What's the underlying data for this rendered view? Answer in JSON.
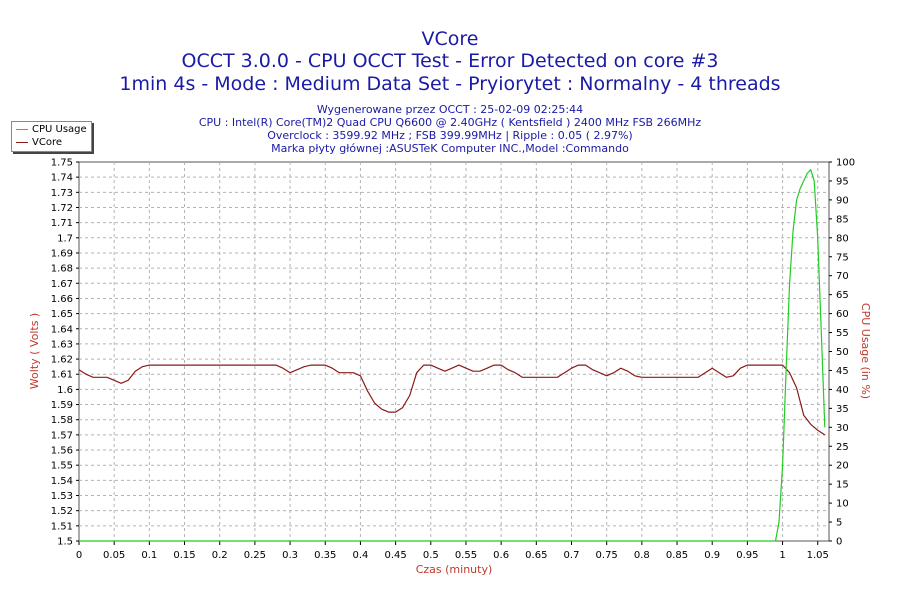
{
  "header": {
    "title": "VCore",
    "subtitle1": "OCCT 3.0.0 - CPU OCCT Test - Error Detected on core #3",
    "subtitle2": "1min 4s - Mode : Medium Data Set - Pryiorytet : Normalny - 4 threads"
  },
  "info": {
    "line1": "Wygenerowane przez OCCT : 25-02-09 02:25:44",
    "line2": "CPU : Intel(R) Core(TM)2 Quad CPU Q6600 @ 2.40GHz ( Kentsfield ) 2400 MHz FSB 266MHz",
    "line3": "Overclock : 3599.92 MHz ; FSB 399.99MHz | Ripple : 0.05 ( 2.97%)",
    "line4": "Marka płyty głównej :ASUSTeK Computer INC.,Model :Commando"
  },
  "legend": {
    "items": [
      {
        "label": "CPU Usage",
        "color": "#22cc22"
      },
      {
        "label": "VCore",
        "color": "#8b1a1a"
      }
    ]
  },
  "colors": {
    "cpu_usage": "#22cc22",
    "vcore": "#8b1a1a",
    "title": "#1a1aa6",
    "axis_label": "#c0392b",
    "grid": "#b3b3b3"
  },
  "chart_data": {
    "type": "line",
    "xlabel": "Czas (minuty)",
    "ylabel": "Wolty ( Volts )",
    "y2label": "CPU Usage (in %)",
    "xlim": [
      0,
      1.066
    ],
    "ylim": [
      1.5,
      1.75
    ],
    "y2lim": [
      0,
      100
    ],
    "grid": true,
    "legend_position": "top-left",
    "x_ticks": [
      "0",
      "0.05",
      "0.1",
      "0.15",
      "0.2",
      "0.25",
      "0.3",
      "0.35",
      "0.4",
      "0.45",
      "0.5",
      "0.55",
      "0.6",
      "0.65",
      "0.7",
      "0.75",
      "0.8",
      "0.85",
      "0.9",
      "0.95",
      "1",
      "1.05"
    ],
    "y_ticks": [
      "1.5",
      "1.51",
      "1.52",
      "1.53",
      "1.54",
      "1.55",
      "1.56",
      "1.57",
      "1.58",
      "1.59",
      "1.6",
      "1.61",
      "1.62",
      "1.63",
      "1.64",
      "1.65",
      "1.66",
      "1.67",
      "1.68",
      "1.69",
      "1.7",
      "1.71",
      "1.72",
      "1.73",
      "1.74",
      "1.75"
    ],
    "y2_ticks": [
      "0",
      "5",
      "10",
      "15",
      "20",
      "25",
      "30",
      "35",
      "40",
      "45",
      "50",
      "55",
      "60",
      "65",
      "70",
      "75",
      "80",
      "85",
      "90",
      "95",
      "100"
    ],
    "series": [
      {
        "name": "VCore",
        "axis": "left",
        "x": [
          0,
          0.01,
          0.02,
          0.04,
          0.05,
          0.06,
          0.07,
          0.08,
          0.09,
          0.1,
          0.12,
          0.15,
          0.2,
          0.25,
          0.28,
          0.29,
          0.3,
          0.31,
          0.32,
          0.33,
          0.34,
          0.35,
          0.36,
          0.37,
          0.38,
          0.39,
          0.4,
          0.41,
          0.42,
          0.43,
          0.44,
          0.45,
          0.46,
          0.47,
          0.48,
          0.49,
          0.5,
          0.51,
          0.52,
          0.53,
          0.54,
          0.55,
          0.56,
          0.57,
          0.58,
          0.59,
          0.6,
          0.61,
          0.62,
          0.63,
          0.64,
          0.65,
          0.66,
          0.67,
          0.68,
          0.69,
          0.7,
          0.71,
          0.72,
          0.73,
          0.74,
          0.75,
          0.76,
          0.77,
          0.78,
          0.79,
          0.8,
          0.85,
          0.88,
          0.89,
          0.9,
          0.91,
          0.92,
          0.93,
          0.94,
          0.95,
          0.98,
          0.99,
          1.0,
          1.01,
          1.02,
          1.03,
          1.04,
          1.05,
          1.06
        ],
        "y": [
          1.613,
          1.61,
          1.608,
          1.608,
          1.606,
          1.604,
          1.606,
          1.612,
          1.615,
          1.616,
          1.616,
          1.616,
          1.616,
          1.616,
          1.616,
          1.614,
          1.611,
          1.613,
          1.615,
          1.616,
          1.616,
          1.616,
          1.614,
          1.611,
          1.611,
          1.611,
          1.609,
          1.599,
          1.591,
          1.587,
          1.585,
          1.585,
          1.588,
          1.596,
          1.611,
          1.616,
          1.616,
          1.614,
          1.612,
          1.614,
          1.616,
          1.614,
          1.612,
          1.612,
          1.614,
          1.616,
          1.616,
          1.613,
          1.611,
          1.608,
          1.608,
          1.608,
          1.608,
          1.608,
          1.608,
          1.611,
          1.614,
          1.616,
          1.616,
          1.613,
          1.611,
          1.609,
          1.611,
          1.614,
          1.612,
          1.609,
          1.608,
          1.608,
          1.608,
          1.611,
          1.614,
          1.611,
          1.608,
          1.609,
          1.614,
          1.616,
          1.616,
          1.616,
          1.616,
          1.611,
          1.601,
          1.583,
          1.577,
          1.573,
          1.57
        ]
      },
      {
        "name": "CPU Usage",
        "axis": "right",
        "x": [
          0,
          0.99,
          0.995,
          1.0,
          1.005,
          1.01,
          1.015,
          1.02,
          1.025,
          1.03,
          1.035,
          1.04,
          1.045,
          1.05,
          1.055,
          1.06
        ],
        "y": [
          0,
          0,
          5,
          20,
          45,
          68,
          82,
          90,
          93,
          95,
          97,
          98,
          95,
          80,
          55,
          30
        ]
      }
    ]
  }
}
